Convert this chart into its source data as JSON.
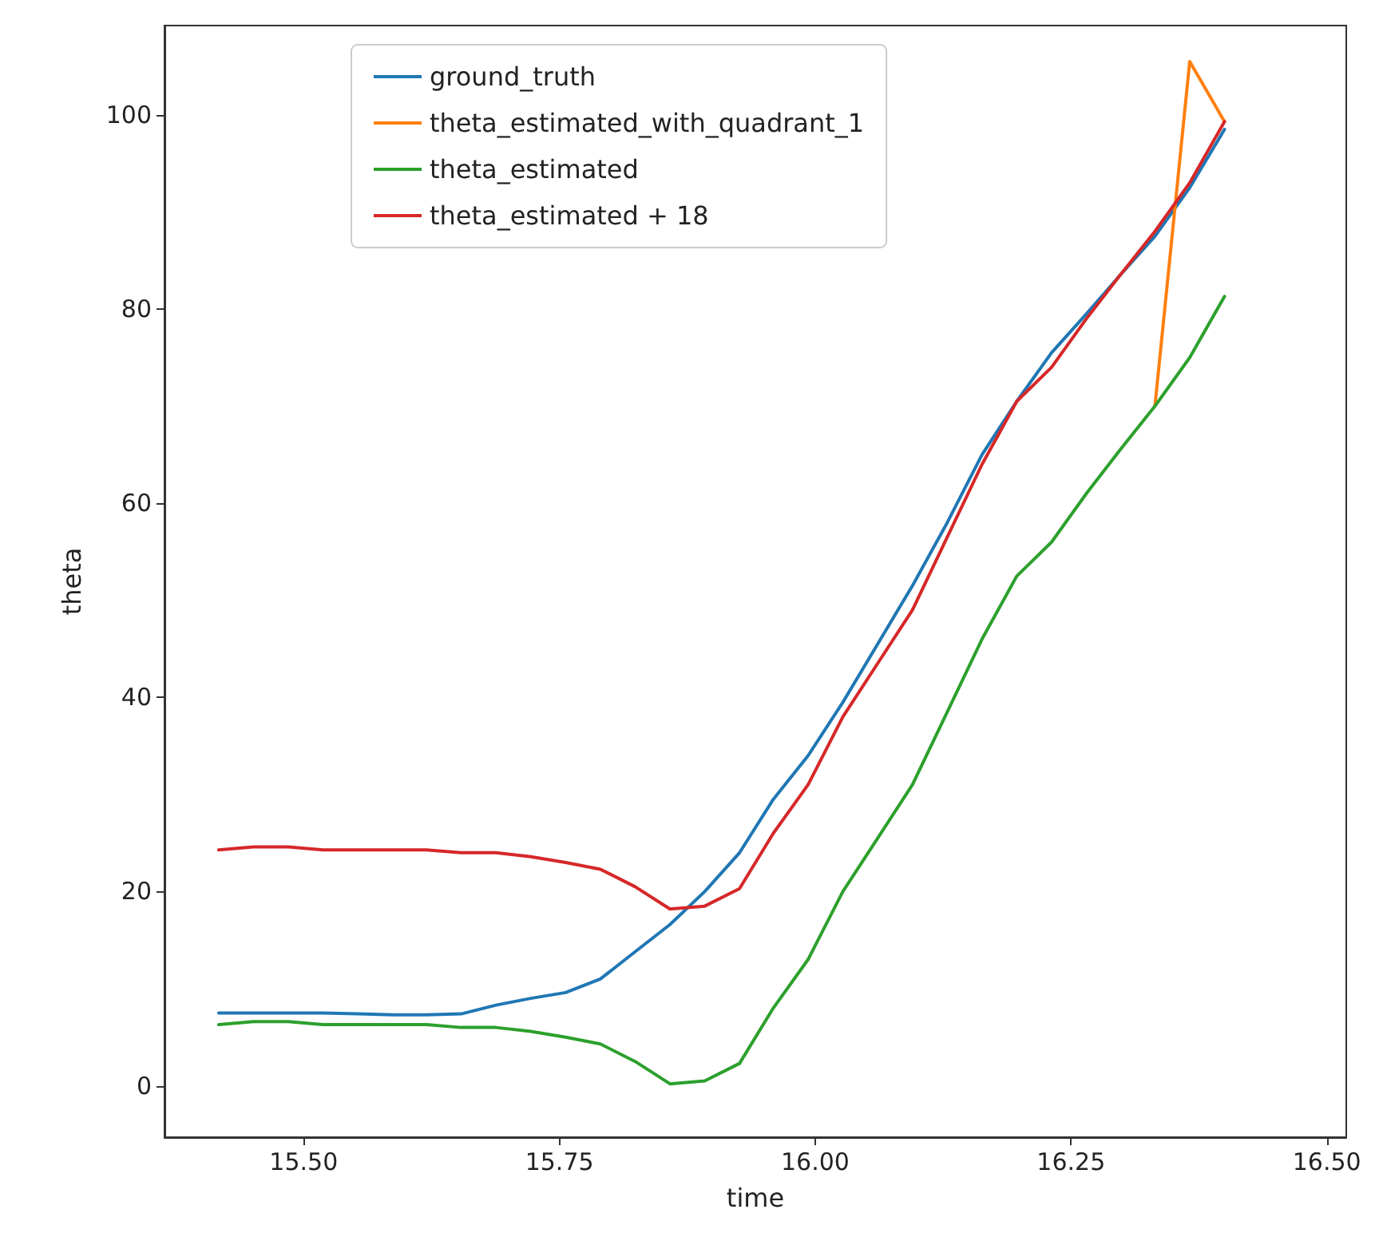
{
  "chart_data": {
    "type": "line",
    "xlabel": "time",
    "ylabel": "theta",
    "x": [
      15.417,
      15.451,
      15.485,
      15.519,
      15.553,
      15.587,
      15.62,
      15.654,
      15.688,
      15.722,
      15.756,
      15.79,
      15.824,
      15.858,
      15.892,
      15.926,
      15.959,
      15.993,
      16.027,
      16.061,
      16.095,
      16.129,
      16.163,
      16.197,
      16.231,
      16.265,
      16.298,
      16.332,
      16.366,
      16.4
    ],
    "series": [
      {
        "name": "ground_truth",
        "color": "#1f77b4",
        "values": [
          7.5,
          7.5,
          7.5,
          7.5,
          7.4,
          7.3,
          7.3,
          7.4,
          8.3,
          9.0,
          9.6,
          11.0,
          13.8,
          16.6,
          20.0,
          24.0,
          29.5,
          34.0,
          39.5,
          45.5,
          51.5,
          58.0,
          65.0,
          70.5,
          75.5,
          79.5,
          83.5,
          87.5,
          92.5,
          98.5
        ]
      },
      {
        "name": "theta_estimated_with_quadrant_1",
        "color": "#ff7f0e",
        "values": [
          null,
          null,
          null,
          null,
          null,
          null,
          null,
          null,
          null,
          null,
          null,
          null,
          null,
          null,
          null,
          null,
          null,
          null,
          null,
          null,
          null,
          null,
          null,
          null,
          null,
          null,
          null,
          70.0,
          105.5,
          99.3
        ]
      },
      {
        "name": "theta_estimated",
        "color": "#2ca02c",
        "values": [
          6.3,
          6.6,
          6.6,
          6.3,
          6.3,
          6.3,
          6.3,
          6.0,
          6.0,
          5.6,
          5.0,
          4.3,
          2.5,
          0.2,
          0.5,
          2.3,
          8.0,
          13.0,
          20.0,
          25.5,
          31.0,
          38.5,
          46.0,
          52.5,
          56.0,
          61.0,
          65.5,
          70.0,
          75.0,
          81.3
        ]
      },
      {
        "name": "theta_estimated + 18",
        "color": "#d62728",
        "values": [
          24.3,
          24.6,
          24.6,
          24.3,
          24.3,
          24.3,
          24.3,
          24.0,
          24.0,
          23.6,
          23.0,
          22.3,
          20.5,
          18.2,
          18.5,
          20.3,
          26.0,
          31.0,
          38.0,
          43.5,
          49.0,
          56.5,
          64.0,
          70.5,
          74.0,
          79.0,
          83.5,
          88.0,
          93.0,
          99.3
        ]
      }
    ],
    "xlim": [
      15.364,
      16.519
    ],
    "ylim": [
      -5.3,
      109.2
    ],
    "xticks": [
      {
        "value": 15.5,
        "label": "15.50"
      },
      {
        "value": 15.75,
        "label": "15.75"
      },
      {
        "value": 16.0,
        "label": "16.00"
      },
      {
        "value": 16.25,
        "label": "16.25"
      },
      {
        "value": 16.5,
        "label": "16.50"
      }
    ],
    "yticks": [
      0,
      20,
      40,
      60,
      80,
      100
    ],
    "grid": false,
    "legend": "top",
    "marker": "none",
    "line_style": "solid"
  }
}
